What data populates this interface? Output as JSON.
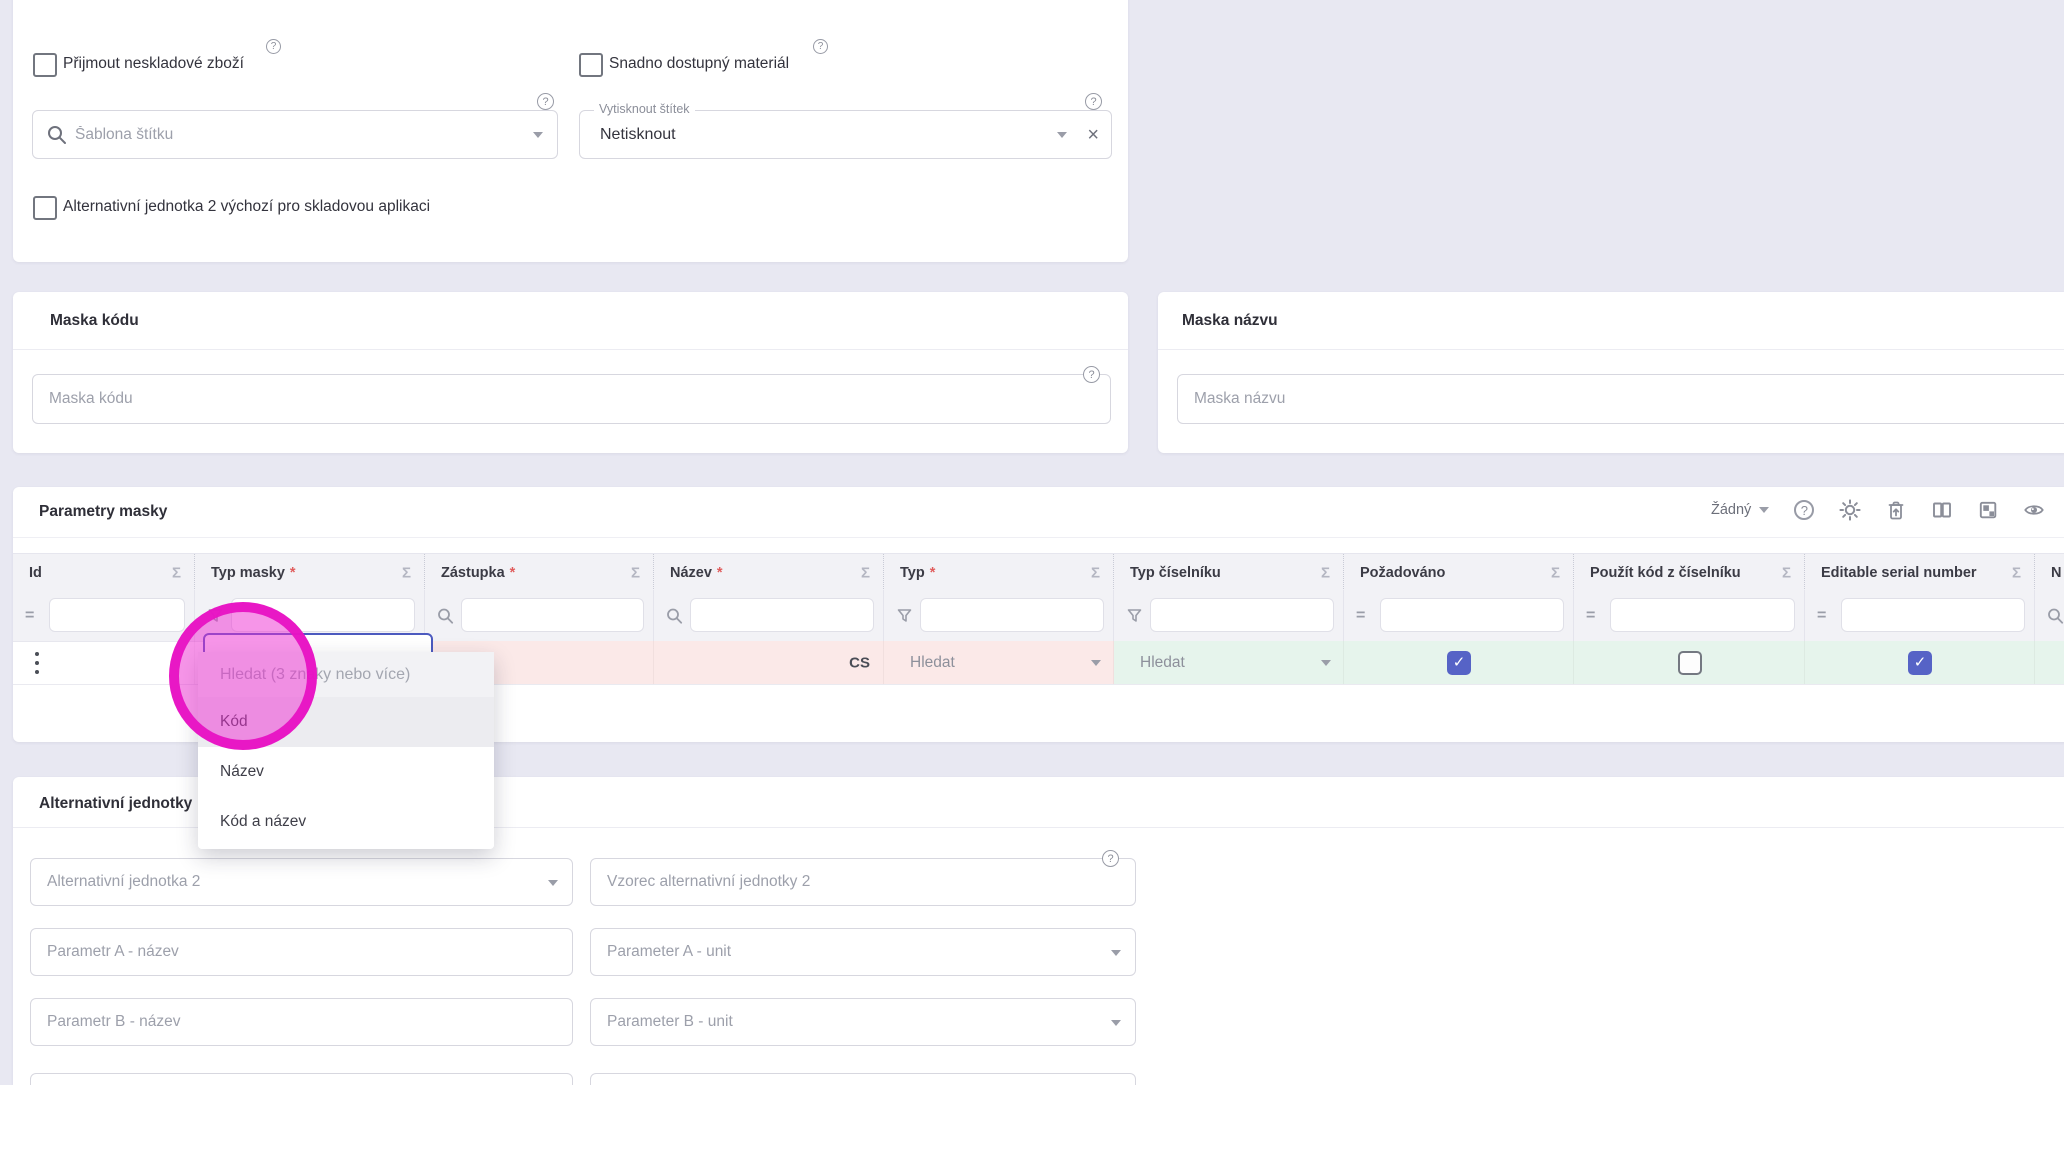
{
  "colors": {
    "page_bg": "#e8e8f2",
    "card_bg": "#ffffff",
    "accent_indigo": "#5663c6",
    "focus_border": "#4c5abf",
    "error_cell_bg": "#fbe9e8",
    "valid_cell_bg": "#e6f4ec",
    "table_header_bg": "#f2f2f6",
    "annotation_magenta": "#e812c4",
    "asterisk_red": "#e05c5c"
  },
  "top_card": {
    "checkbox_receive_nonstock": "Přijmout neskladové zboží",
    "checkbox_easy_material": "Snadno dostupný materiál",
    "label_template_placeholder": "Šablona štítku",
    "print_label_label": "Vytisknout štítek",
    "print_label_value": "Netisknout",
    "checkbox_alt_unit_default": "Alternativní jednotka 2 výchozí pro skladovou aplikaci"
  },
  "maska_kodu": {
    "title": "Maska kódu",
    "placeholder": "Maska kódu"
  },
  "maska_nazvu": {
    "title": "Maska názvu",
    "placeholder": "Maska názvu"
  },
  "parametry": {
    "title": "Parametry masky",
    "group_by_value": "Žádný",
    "toolbar_icon_names": [
      "help-icon",
      "gear-icon",
      "trash-restore-icon",
      "split-columns-icon",
      "layout-overlap-icon",
      "eye-icon"
    ],
    "columns": [
      {
        "label": "Id",
        "required": false,
        "filter_icon": "equals-icon"
      },
      {
        "label": "Typ masky",
        "required": true,
        "filter_icon": "funnel-icon"
      },
      {
        "label": "Zástupka",
        "required": true,
        "filter_icon": "search-icon"
      },
      {
        "label": "Název",
        "required": true,
        "filter_icon": "search-icon"
      },
      {
        "label": "Typ",
        "required": true,
        "filter_icon": "funnel-icon"
      },
      {
        "label": "Typ číselníku",
        "required": false,
        "filter_icon": "funnel-icon"
      },
      {
        "label": "Požadováno",
        "required": false,
        "filter_icon": "equals-icon"
      },
      {
        "label": "Použít kód z číselníku",
        "required": false,
        "filter_icon": "equals-icon"
      },
      {
        "label": "Editable serial number",
        "required": false,
        "filter_icon": "equals-icon"
      },
      {
        "label": "N",
        "required": false,
        "filter_icon": "search-icon"
      }
    ],
    "row": {
      "nazev_language_badge": "CS",
      "typ_value": "Hledat",
      "typ_ciselniku_value": "Hledat",
      "pozadovano_checked": true,
      "pouzit_kod_checked": false,
      "editable_serial_checked": true
    }
  },
  "typ_masky_dropdown": {
    "search_placeholder": "Hledat (3 znaky nebo více)",
    "options": [
      {
        "label": "Kód",
        "highlighted": true
      },
      {
        "label": "Název",
        "highlighted": false
      },
      {
        "label": "Kód a název",
        "highlighted": false
      }
    ]
  },
  "alt_jednotky": {
    "title": "Alternativní jednotky",
    "rows": [
      {
        "left": {
          "placeholder": "Alternativní jednotka 2",
          "kind": "select"
        },
        "right": {
          "placeholder": "Vzorec alternativní jednotky 2",
          "kind": "input",
          "help": true
        }
      },
      {
        "left": {
          "placeholder": "Parametr A - název",
          "kind": "input"
        },
        "right": {
          "placeholder": "Parameter A - unit",
          "kind": "select"
        }
      },
      {
        "left": {
          "placeholder": "Parametr B - název",
          "kind": "input"
        },
        "right": {
          "placeholder": "Parameter B - unit",
          "kind": "select"
        }
      },
      {
        "left": {
          "placeholder": "",
          "kind": "partial"
        },
        "right": {
          "placeholder": "",
          "kind": "partial"
        }
      }
    ]
  }
}
